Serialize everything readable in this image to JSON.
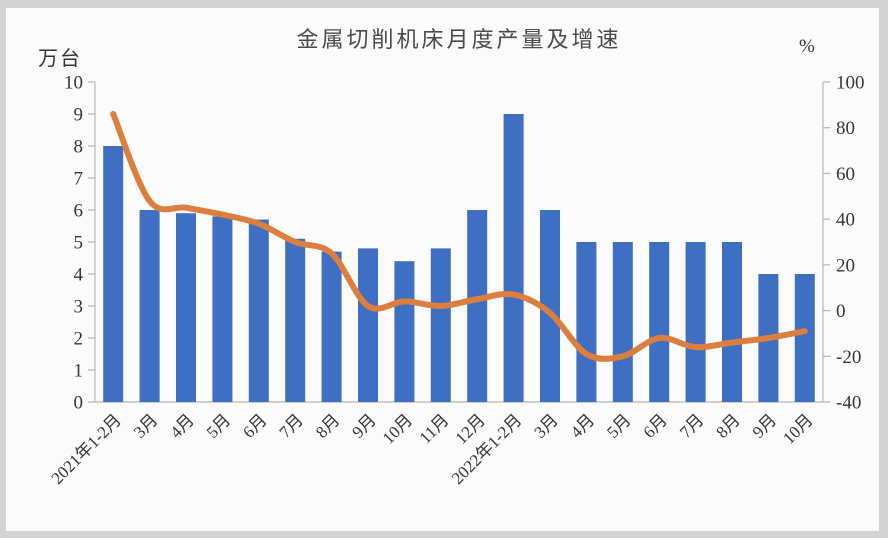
{
  "chart": {
    "title": "金属切削机床月度产量及增速",
    "left_axis_unit": "万台",
    "right_axis_unit": "%"
  },
  "chart_data": {
    "type": "bar+line",
    "title": "金属切削机床月度产量及增速",
    "categories": [
      "2021年1-2月",
      "3月",
      "4月",
      "5月",
      "6月",
      "7月",
      "8月",
      "9月",
      "10月",
      "11月",
      "12月",
      "2022年1-2月",
      "3月",
      "4月",
      "5月",
      "6月",
      "7月",
      "8月",
      "9月",
      "10月"
    ],
    "series": [
      {
        "name": "月度产量",
        "type": "bar",
        "axis": "left",
        "unit": "万台",
        "color": "#3e6fc2",
        "values": [
          8.0,
          6.0,
          5.9,
          5.8,
          5.7,
          5.1,
          4.7,
          4.8,
          4.4,
          4.8,
          6.0,
          9.0,
          6.0,
          5.0,
          5.0,
          5.0,
          5.0,
          5.0,
          4.0,
          4.0
        ]
      },
      {
        "name": "增速",
        "type": "line",
        "axis": "right",
        "unit": "%",
        "color": "#dc7e3e",
        "values": [
          86,
          48,
          45,
          42,
          38,
          30,
          25,
          2,
          4,
          2,
          5,
          7,
          -1,
          -19,
          -20,
          -12,
          -16,
          -14,
          -12,
          -9
        ]
      }
    ],
    "left_axis": {
      "unit": "万台",
      "min": 0,
      "max": 10,
      "tick_step": 1,
      "ticks": [
        0,
        1,
        2,
        3,
        4,
        5,
        6,
        7,
        8,
        9,
        10
      ]
    },
    "right_axis": {
      "unit": "%",
      "min": -40,
      "max": 100,
      "tick_step": 20,
      "ticks": [
        -40,
        -20,
        0,
        20,
        40,
        60,
        80,
        100
      ]
    },
    "legend": "none",
    "grid": "off",
    "x_label_rotation": -45
  },
  "colors": {
    "bar": "#3e6fc2",
    "line": "#dc7e3e",
    "axis": "#c2c2c2",
    "tick": "#b5b5b5",
    "text": "#363636",
    "title": "#4a4a4a",
    "frame": "#d3d3d3",
    "background": "#fbfbfb"
  }
}
